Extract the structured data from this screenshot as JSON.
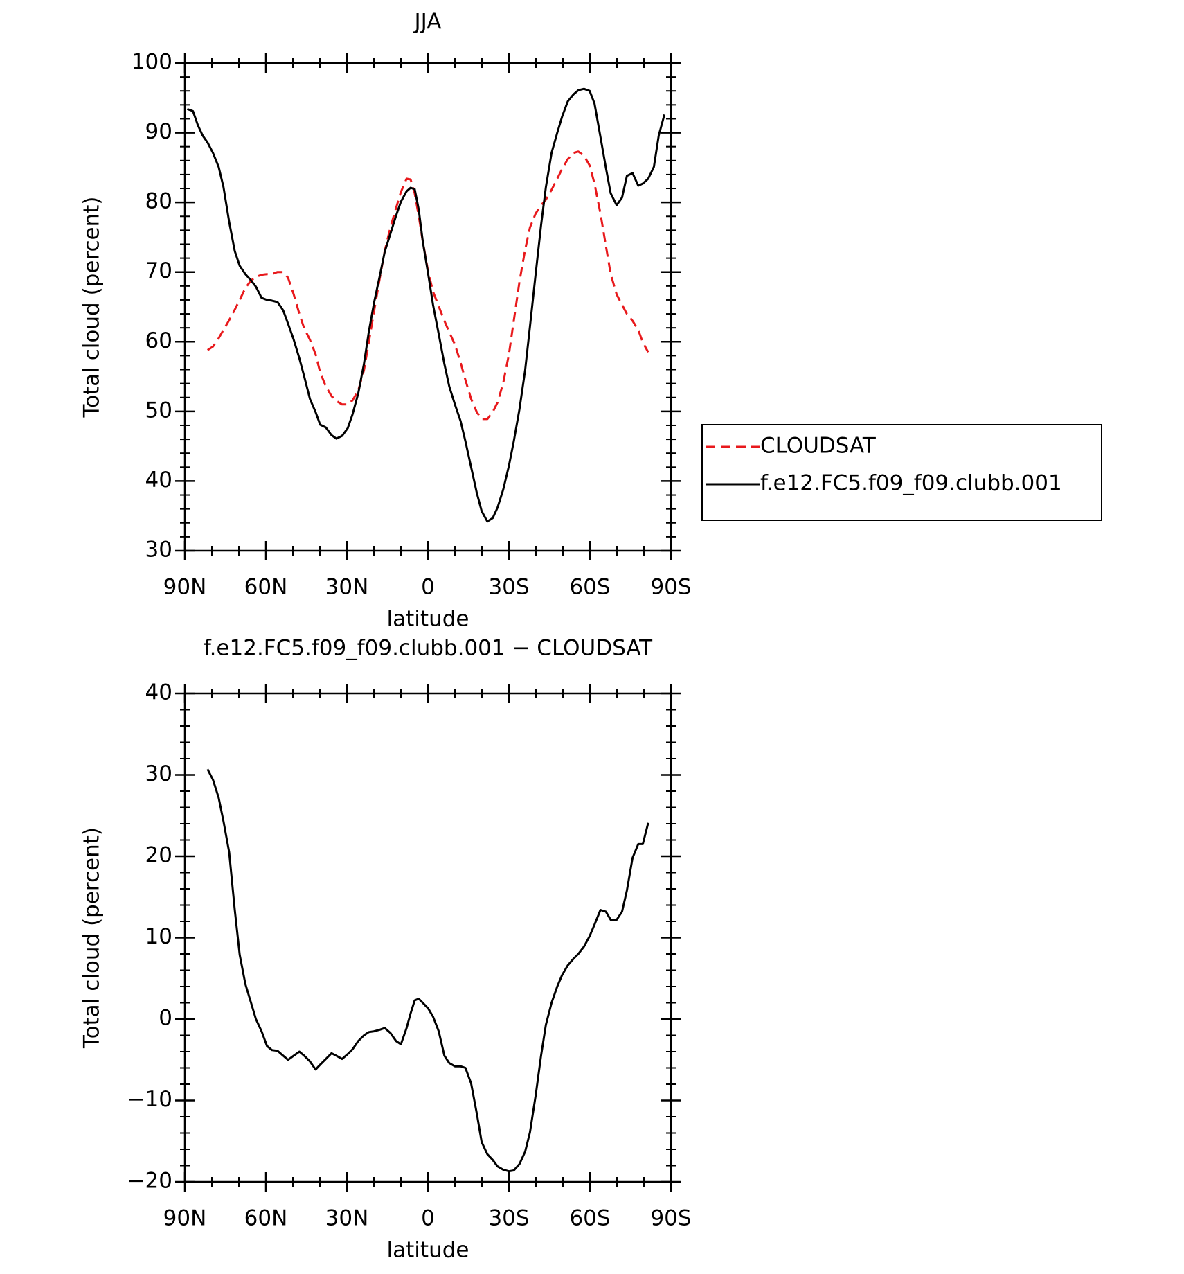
{
  "chart_data": [
    {
      "type": "line",
      "title": "JJA",
      "x_label": "latitude",
      "y_label": "Total cloud (percent)",
      "x": [
        89.1,
        87,
        85.2,
        83.4,
        81.6,
        79.6,
        77.5,
        75.7,
        73.6,
        71.5,
        69.7,
        67.6,
        65.5,
        63.7,
        61.6,
        59.6,
        57.8,
        55.7,
        53.6,
        51.8,
        49.7,
        47.6,
        45.8,
        43.7,
        41.6,
        39.9,
        37.8,
        35.7,
        33.9,
        31.8,
        29.7,
        27.9,
        25.8,
        23.7,
        21.9,
        19.9,
        17.8,
        16.0,
        13.9,
        11.8,
        10.0,
        7.9,
        6.4,
        4.9,
        3.4,
        1.9,
        -0.1,
        -1.9,
        -4.0,
        -6.1,
        -7.9,
        -10.0,
        -12.1,
        -13.9,
        -16.0,
        -18.1,
        -19.9,
        -22.0,
        -24.0,
        -25.8,
        -27.9,
        -30.0,
        -31.8,
        -33.9,
        -36.0,
        -37.8,
        -39.9,
        -41.9,
        -43.7,
        -45.8,
        -47.9,
        -49.7,
        -51.8,
        -53.9,
        -55.7,
        -57.8,
        -59.9,
        -61.7,
        -63.9,
        -65.9,
        -67.7,
        -69.9,
        -71.9,
        -73.7,
        -75.8,
        -77.9,
        -79.6,
        -81.6,
        -83.7,
        -85.5,
        -87.6
      ],
      "series": [
        {
          "name": "CLOUDSAT",
          "color": "#e8191c",
          "style": "dashed",
          "values": [
            null,
            null,
            null,
            null,
            58.8,
            59.3,
            60.5,
            61.7,
            63.1,
            64.6,
            66.0,
            67.7,
            68.8,
            69.3,
            69.6,
            69.7,
            69.7,
            70.0,
            70.0,
            69.2,
            66.8,
            64.0,
            61.9,
            60.3,
            58.2,
            55.6,
            53.6,
            52.2,
            51.5,
            51.0,
            51.0,
            51.6,
            53.0,
            55.9,
            59.9,
            64.5,
            69.2,
            73.0,
            76.4,
            79.2,
            81.5,
            83.4,
            83.3,
            81.3,
            78.1,
            74.4,
            70.0,
            67.2,
            65.1,
            63.0,
            61.4,
            59.6,
            57.0,
            54.5,
            51.8,
            49.9,
            48.9,
            48.9,
            49.9,
            51.3,
            54.1,
            58.2,
            63.0,
            68.6,
            73.2,
            76.4,
            78.4,
            79.6,
            80.4,
            81.8,
            83.4,
            84.8,
            86.2,
            87.1,
            87.3,
            86.7,
            85.3,
            82.7,
            78.4,
            73.8,
            69.7,
            66.8,
            65.3,
            64.0,
            63.0,
            61.7,
            59.9,
            58.5,
            null,
            null,
            null
          ]
        },
        {
          "name": "f.e12.FC5.f09_f09.clubb.001",
          "color": "#000000",
          "style": "solid",
          "values": [
            93.4,
            93.1,
            91.1,
            89.6,
            88.6,
            87.1,
            85.1,
            82.2,
            77.2,
            73.0,
            70.9,
            69.7,
            68.8,
            67.9,
            66.3,
            66.0,
            65.9,
            65.7,
            64.5,
            62.6,
            60.3,
            57.6,
            55.0,
            51.8,
            49.9,
            48.1,
            47.7,
            46.6,
            46.1,
            46.5,
            47.6,
            49.6,
            52.6,
            56.8,
            61.4,
            65.7,
            69.5,
            72.9,
            75.5,
            78.1,
            80.1,
            81.6,
            82.1,
            81.9,
            79.0,
            74.4,
            69.7,
            65.3,
            61.1,
            56.8,
            53.6,
            51.0,
            48.6,
            45.7,
            42.0,
            38.3,
            35.7,
            34.2,
            34.7,
            36.2,
            38.8,
            42.2,
            45.7,
            50.3,
            55.9,
            62.2,
            69.7,
            76.7,
            82.2,
            87.1,
            90.0,
            92.3,
            94.5,
            95.5,
            96.1,
            96.3,
            96.0,
            94.2,
            89.4,
            85.0,
            81.3,
            79.6,
            80.7,
            83.8,
            84.2,
            82.4,
            82.7,
            83.4,
            85.1,
            89.6,
            92.6
          ]
        }
      ],
      "xlim": [
        90,
        -90
      ],
      "xticks": [
        {
          "value": 90,
          "label": "90N"
        },
        {
          "value": 60,
          "label": "60N"
        },
        {
          "value": 30,
          "label": "30N"
        },
        0,
        {
          "value": -30,
          "label": "30S"
        },
        {
          "value": -60,
          "label": "60S"
        },
        {
          "value": -90,
          "label": "90S"
        }
      ],
      "ylim": [
        30,
        100
      ],
      "yticks": [
        30,
        40,
        50,
        60,
        70,
        80,
        90,
        100
      ],
      "legend": "right"
    },
    {
      "type": "line",
      "title": "f.e12.FC5.f09_f09.clubb.001 − CLOUDSAT",
      "x_label": "latitude",
      "y_label": "Total cloud (percent)",
      "x": [
        81.6,
        79.6,
        77.5,
        75.7,
        73.6,
        71.5,
        69.7,
        67.6,
        65.5,
        63.7,
        61.6,
        59.6,
        57.8,
        55.7,
        53.6,
        51.8,
        49.7,
        47.6,
        45.8,
        43.7,
        41.6,
        39.9,
        37.8,
        35.7,
        33.9,
        31.8,
        29.7,
        27.9,
        25.8,
        23.7,
        21.9,
        19.9,
        17.8,
        16.0,
        13.9,
        11.8,
        10.0,
        7.9,
        6.4,
        4.9,
        3.4,
        1.9,
        -0.1,
        -1.9,
        -4.0,
        -6.1,
        -7.9,
        -10.0,
        -12.1,
        -13.9,
        -16.0,
        -18.1,
        -19.9,
        -22.0,
        -24.0,
        -25.8,
        -27.9,
        -30.0,
        -31.8,
        -33.9,
        -36.0,
        -37.8,
        -39.9,
        -41.9,
        -43.7,
        -45.8,
        -47.9,
        -49.7,
        -51.8,
        -53.9,
        -55.7,
        -57.8,
        -59.9,
        -61.7,
        -63.9,
        -65.9,
        -67.7,
        -69.9,
        -71.9,
        -73.7,
        -75.8,
        -77.9,
        -79.6,
        -81.6
      ],
      "series": [
        {
          "color": "#000000",
          "style": "solid",
          "values": [
            30.7,
            29.4,
            27.2,
            24.3,
            20.5,
            13.4,
            7.9,
            4.3,
            2.0,
            0.0,
            -1.5,
            -3.3,
            -3.8,
            -3.9,
            -4.5,
            -5.0,
            -4.5,
            -4.0,
            -4.5,
            -5.2,
            -6.2,
            -5.6,
            -4.9,
            -4.2,
            -4.5,
            -4.9,
            -4.3,
            -3.7,
            -2.7,
            -2.0,
            -1.6,
            -1.5,
            -1.3,
            -1.1,
            -1.7,
            -2.7,
            -3.1,
            -1.1,
            0.7,
            2.3,
            2.5,
            2.0,
            1.3,
            0.3,
            -1.5,
            -4.5,
            -5.4,
            -5.8,
            -5.8,
            -6.0,
            -7.9,
            -11.6,
            -15.1,
            -16.6,
            -17.3,
            -18.1,
            -18.5,
            -18.7,
            -18.6,
            -17.8,
            -16.3,
            -13.9,
            -9.4,
            -4.5,
            -0.7,
            2.0,
            4.0,
            5.4,
            6.6,
            7.4,
            8.0,
            8.9,
            10.2,
            11.6,
            13.4,
            13.2,
            12.2,
            12.2,
            13.2,
            15.8,
            19.8,
            21.5,
            21.5,
            24.1
          ]
        }
      ],
      "xlim": [
        90,
        -90
      ],
      "xticks": [
        {
          "value": 90,
          "label": "90N"
        },
        {
          "value": 60,
          "label": "60N"
        },
        {
          "value": 30,
          "label": "30N"
        },
        0,
        {
          "value": -30,
          "label": "30S"
        },
        {
          "value": -60,
          "label": "60S"
        },
        {
          "value": -90,
          "label": "90S"
        }
      ],
      "ylim": [
        -20,
        40
      ],
      "yticks": [
        {
          "value": -20,
          "label": "−20"
        },
        {
          "value": -10,
          "label": "−10"
        },
        0,
        10,
        20,
        30,
        40
      ]
    }
  ]
}
